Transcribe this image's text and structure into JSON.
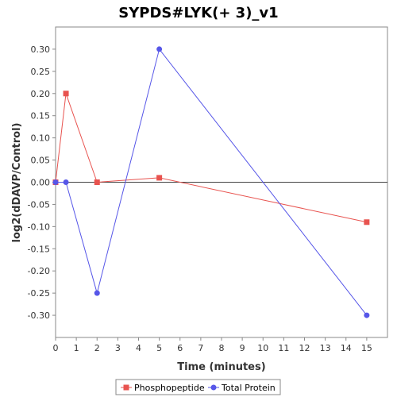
{
  "chart_data": {
    "type": "line",
    "title": "SYPDS#LYK(+ 3)_v1",
    "xlabel": "Time (minutes)",
    "ylabel": "log2(dDAVP/Control)",
    "xlim": [
      0,
      16
    ],
    "ylim": [
      -0.35,
      0.35
    ],
    "x_ticks": [
      "0",
      "1",
      "2",
      "3",
      "4",
      "5",
      "6",
      "7",
      "8",
      "9",
      "10",
      "11",
      "12",
      "13",
      "14",
      "15"
    ],
    "y_ticks": [
      "0.30",
      "0.25",
      "0.20",
      "0.15",
      "0.10",
      "0.05",
      "0.00",
      "-0.05",
      "-0.10",
      "-0.15",
      "-0.20",
      "-0.25",
      "-0.30"
    ],
    "grid": false,
    "zero_line": true,
    "legend_position": "bottom",
    "series": [
      {
        "name": "Phosphopeptide",
        "color": "#e8534f",
        "marker": "square",
        "x": [
          0,
          0.5,
          2,
          5,
          15
        ],
        "y": [
          0.0,
          0.2,
          0.0,
          0.01,
          -0.09
        ]
      },
      {
        "name": "Total Protein",
        "color": "#5656e8",
        "marker": "circle",
        "x": [
          0,
          0.5,
          2,
          5,
          15
        ],
        "y": [
          0.0,
          0.0,
          -0.25,
          0.3,
          -0.3
        ]
      }
    ]
  }
}
